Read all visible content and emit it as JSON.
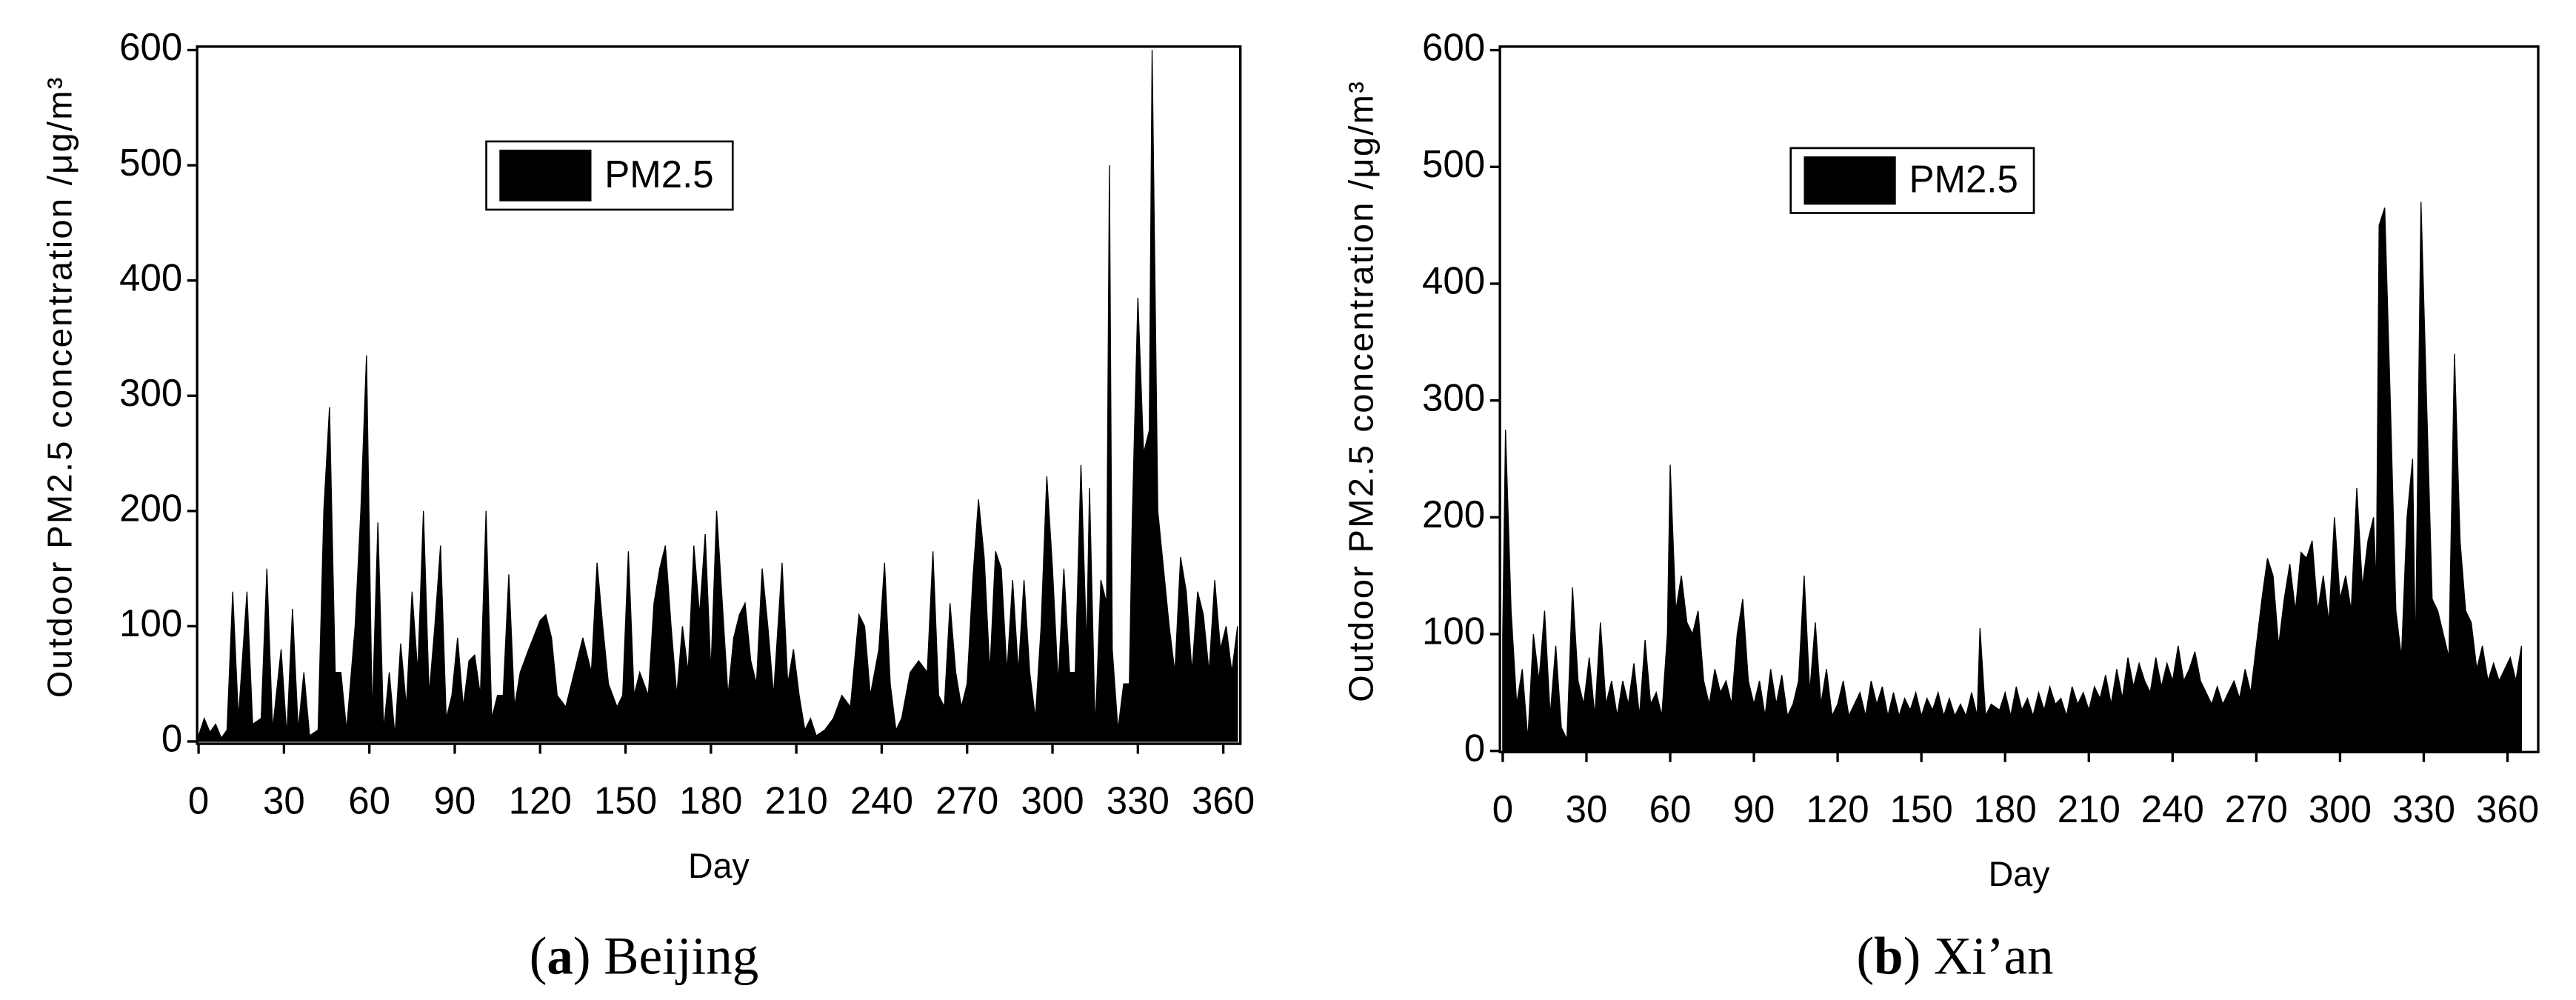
{
  "chart_data": [
    {
      "type": "area",
      "caption": [
        "(",
        "a",
        ") Beijing"
      ],
      "y_label": "Outdoor PM2.5 concentration /μg/m³",
      "x_label": "Day",
      "xlim": [
        -0.5,
        366
      ],
      "xticks": [
        0,
        30,
        60,
        90,
        120,
        150,
        180,
        210,
        240,
        270,
        300,
        330,
        360
      ],
      "ylim": [
        -2,
        603
      ],
      "yticks": [
        0,
        100,
        200,
        300,
        400,
        500,
        600
      ],
      "legend": "top-center",
      "x": [
        0,
        2,
        4,
        6,
        8,
        10,
        12,
        14,
        17,
        19,
        22,
        24,
        26,
        29,
        31,
        33,
        35,
        37,
        39,
        42,
        44,
        46,
        48,
        50,
        52,
        55,
        57,
        59,
        61,
        63,
        65,
        67,
        69,
        71,
        73,
        75,
        77,
        79,
        81,
        83,
        85,
        87,
        89,
        91,
        93,
        95,
        97,
        99,
        101,
        103,
        105,
        107,
        109,
        111,
        113,
        116,
        120,
        122,
        124,
        126,
        129,
        132,
        135,
        138,
        140,
        142,
        144,
        147,
        149,
        151,
        153,
        155,
        158,
        160,
        162,
        164,
        166,
        168,
        170,
        172,
        174,
        176,
        178,
        180,
        182,
        184,
        186,
        188,
        190,
        192,
        194,
        196,
        198,
        200,
        202,
        205,
        207,
        209,
        211,
        213,
        215,
        217,
        220,
        223,
        226,
        229,
        232,
        234,
        236,
        239,
        241,
        243,
        245,
        247,
        250,
        253,
        256,
        258,
        260,
        262,
        264,
        266,
        268,
        270,
        272,
        274,
        276,
        278,
        280,
        282,
        284,
        286,
        288,
        290,
        292,
        294,
        296,
        298,
        300,
        302,
        304,
        306,
        308,
        310,
        312,
        313,
        315,
        317,
        319,
        320,
        321,
        323,
        325,
        327,
        328,
        330,
        332,
        334,
        335,
        337,
        339,
        341,
        343,
        345,
        347,
        349,
        351,
        353,
        355,
        357,
        359,
        361,
        363,
        365
      ],
      "series": [
        {
          "name": "PM2.5",
          "color": "#000000",
          "values": [
            5,
            20,
            8,
            15,
            3,
            10,
            130,
            20,
            130,
            15,
            20,
            150,
            10,
            80,
            5,
            115,
            10,
            60,
            5,
            10,
            200,
            290,
            60,
            60,
            10,
            100,
            200,
            335,
            20,
            190,
            10,
            60,
            5,
            85,
            30,
            130,
            60,
            200,
            40,
            100,
            170,
            20,
            40,
            90,
            30,
            70,
            75,
            40,
            200,
            20,
            40,
            40,
            145,
            30,
            60,
            80,
            105,
            110,
            90,
            40,
            30,
            60,
            90,
            60,
            155,
            100,
            50,
            30,
            40,
            165,
            40,
            60,
            40,
            120,
            150,
            170,
            100,
            40,
            100,
            60,
            170,
            110,
            180,
            60,
            200,
            120,
            40,
            90,
            110,
            120,
            70,
            50,
            150,
            100,
            40,
            155,
            50,
            80,
            40,
            10,
            20,
            5,
            10,
            20,
            40,
            30,
            110,
            100,
            40,
            80,
            155,
            50,
            10,
            20,
            60,
            70,
            60,
            165,
            40,
            30,
            120,
            60,
            30,
            50,
            140,
            210,
            160,
            60,
            165,
            150,
            60,
            140,
            60,
            140,
            60,
            20,
            100,
            230,
            150,
            50,
            150,
            60,
            60,
            240,
            80,
            220,
            10,
            140,
            120,
            500,
            80,
            10,
            50,
            50,
            190,
            385,
            250,
            270,
            600,
            200,
            150,
            100,
            60,
            160,
            130,
            60,
            130,
            110,
            60,
            140,
            80,
            100,
            60,
            100
          ]
        }
      ]
    },
    {
      "type": "area",
      "caption": [
        "(",
        "b",
        ") Xi’an"
      ],
      "y_label": "Outdoor PM2.5 concentration /μg/m³",
      "x_label": "Day",
      "xlim": [
        -1,
        371
      ],
      "xticks": [
        0,
        30,
        60,
        90,
        120,
        150,
        180,
        210,
        240,
        270,
        300,
        330,
        360
      ],
      "ylim": [
        -1,
        603
      ],
      "yticks": [
        0,
        100,
        200,
        300,
        400,
        500,
        600
      ],
      "legend": "top-center",
      "x": [
        0,
        1,
        3,
        5,
        7,
        9,
        11,
        13,
        15,
        17,
        19,
        21,
        23,
        25,
        27,
        29,
        31,
        33,
        35,
        37,
        39,
        41,
        43,
        45,
        47,
        49,
        51,
        53,
        55,
        57,
        59,
        60,
        62,
        64,
        66,
        68,
        70,
        72,
        74,
        76,
        78,
        80,
        82,
        84,
        86,
        88,
        90,
        92,
        94,
        96,
        98,
        100,
        102,
        104,
        106,
        108,
        110,
        112,
        114,
        116,
        118,
        120,
        122,
        124,
        126,
        128,
        130,
        132,
        134,
        136,
        138,
        140,
        142,
        144,
        146,
        148,
        150,
        152,
        154,
        156,
        158,
        160,
        162,
        164,
        166,
        168,
        170,
        171,
        173,
        175,
        178,
        180,
        182,
        184,
        186,
        188,
        190,
        192,
        194,
        196,
        198,
        200,
        202,
        204,
        206,
        208,
        210,
        212,
        214,
        216,
        218,
        220,
        222,
        224,
        226,
        228,
        230,
        232,
        234,
        236,
        238,
        240,
        242,
        244,
        246,
        248,
        250,
        252,
        254,
        256,
        258,
        260,
        262,
        264,
        266,
        268,
        270,
        272,
        274,
        276,
        278,
        280,
        282,
        284,
        286,
        288,
        290,
        292,
        294,
        296,
        298,
        300,
        302,
        304,
        306,
        308,
        310,
        312,
        313,
        314,
        316,
        318,
        320,
        322,
        324,
        326,
        327,
        329,
        331,
        333,
        335,
        337,
        339,
        341,
        343,
        345,
        347,
        349,
        351,
        353,
        355,
        357,
        359,
        361,
        363,
        365
      ],
      "series": [
        {
          "name": "PM2.5",
          "color": "#000000",
          "values": [
            100,
            275,
            120,
            40,
            70,
            10,
            100,
            60,
            120,
            30,
            90,
            20,
            10,
            140,
            60,
            40,
            80,
            30,
            110,
            40,
            60,
            30,
            60,
            40,
            75,
            30,
            95,
            40,
            50,
            30,
            100,
            245,
            120,
            150,
            110,
            100,
            120,
            60,
            40,
            70,
            50,
            60,
            40,
            100,
            130,
            60,
            40,
            60,
            30,
            70,
            40,
            65,
            30,
            40,
            60,
            150,
            50,
            110,
            40,
            70,
            30,
            40,
            60,
            30,
            40,
            50,
            30,
            60,
            40,
            55,
            30,
            50,
            30,
            45,
            35,
            50,
            30,
            45,
            35,
            50,
            30,
            45,
            30,
            40,
            30,
            50,
            30,
            105,
            30,
            40,
            35,
            50,
            30,
            55,
            35,
            45,
            30,
            50,
            35,
            55,
            40,
            45,
            30,
            55,
            40,
            50,
            35,
            55,
            45,
            65,
            40,
            70,
            45,
            80,
            55,
            75,
            60,
            50,
            80,
            55,
            75,
            60,
            90,
            60,
            70,
            85,
            60,
            50,
            40,
            55,
            40,
            50,
            60,
            45,
            70,
            50,
            90,
            130,
            165,
            150,
            90,
            130,
            160,
            120,
            170,
            165,
            180,
            120,
            150,
            110,
            200,
            130,
            150,
            120,
            225,
            140,
            180,
            200,
            140,
            450,
            465,
            300,
            120,
            80,
            200,
            250,
            80,
            470,
            300,
            130,
            120,
            100,
            80,
            340,
            180,
            120,
            110,
            70,
            90,
            60,
            75,
            60,
            70,
            80,
            60,
            90
          ]
        }
      ]
    }
  ]
}
